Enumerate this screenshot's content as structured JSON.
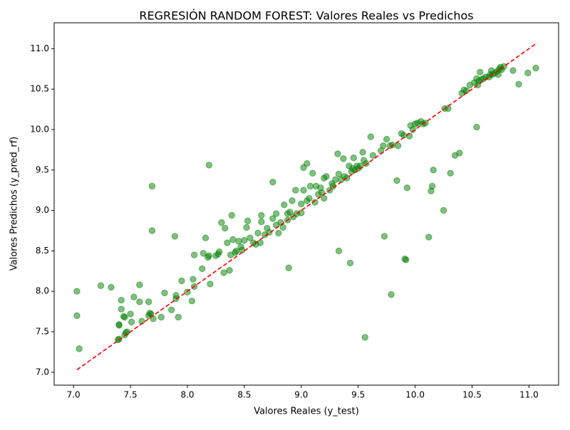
{
  "chart_data": {
    "type": "scatter",
    "title": "REGRESIÓN RANDOM FOREST: Valores Reales vs Predichos",
    "x_label": "Valores Reales (y_test)",
    "y_label": "Valores Predichos (y_pred_rf)",
    "color": "green",
    "alpha": 0.5,
    "xlim": [
      6.83,
      11.26
    ],
    "ylim": [
      6.84,
      11.32
    ],
    "xticks": [
      {
        "value": 7,
        "label": "7.0"
      },
      7.5,
      {
        "value": 8,
        "label": "8.0"
      },
      8.5,
      {
        "value": 9,
        "label": "9.0"
      },
      9.5,
      {
        "value": 10,
        "label": "10.0"
      },
      10.5,
      {
        "value": 11,
        "label": "11.0"
      }
    ],
    "yticks": [
      {
        "value": 7,
        "label": "7.0"
      },
      7.5,
      {
        "value": 8,
        "label": "8.0"
      },
      8.5,
      {
        "value": 9,
        "label": "9.0"
      },
      9.5,
      {
        "value": 10,
        "label": "10.0"
      },
      10.5,
      {
        "value": 11,
        "label": "11.0"
      }
    ],
    "reference_line": {
      "x": [
        7.03,
        11.07
      ],
      "y": [
        7.03,
        11.07
      ],
      "color": "red"
    },
    "x": [
      7.03,
      7.03,
      7.05,
      7.24,
      7.33,
      7.4,
      7.4,
      7.39,
      7.4,
      7.42,
      7.42,
      7.44,
      7.45,
      7.46,
      7.45,
      7.47,
      7.5,
      7.51,
      7.53,
      7.58,
      7.58,
      7.6,
      7.66,
      7.66,
      7.67,
      7.69,
      7.69,
      7.7,
      7.68,
      7.77,
      7.8,
      7.86,
      7.89,
      7.9,
      7.9,
      7.92,
      7.95,
      8.0,
      8.04,
      8.05,
      8.06,
      8.06,
      8.13,
      8.14,
      8.16,
      8.18,
      8.19,
      8.2,
      8.19,
      8.25,
      8.27,
      8.28,
      8.3,
      8.32,
      8.33,
      8.35,
      8.37,
      8.38,
      8.39,
      8.4,
      8.42,
      8.43,
      8.45,
      8.47,
      8.48,
      8.5,
      8.52,
      8.53,
      8.55,
      8.58,
      8.6,
      8.62,
      8.64,
      8.65,
      8.65,
      8.68,
      8.7,
      8.72,
      8.75,
      8.75,
      8.78,
      8.78,
      8.8,
      8.82,
      8.84,
      8.85,
      8.88,
      8.88,
      8.89,
      8.9,
      8.92,
      8.93,
      8.95,
      8.96,
      9.0,
      9.0,
      9.02,
      9.02,
      9.05,
      9.05,
      9.07,
      9.08,
      9.1,
      9.12,
      9.13,
      9.15,
      9.17,
      9.18,
      9.2,
      9.2,
      9.22,
      9.25,
      9.27,
      9.28,
      9.3,
      9.32,
      9.33,
      9.33,
      9.35,
      9.37,
      9.38,
      9.4,
      9.42,
      9.43,
      9.44,
      9.45,
      9.46,
      9.47,
      9.49,
      9.5,
      9.52,
      9.54,
      9.55,
      9.56,
      9.57,
      9.61,
      9.63,
      9.7,
      9.72,
      9.73,
      9.75,
      9.78,
      9.79,
      9.8,
      9.84,
      9.85,
      9.88,
      9.9,
      9.91,
      9.92,
      9.93,
      9.95,
      9.96,
      9.98,
      10.0,
      10.02,
      10.05,
      10.07,
      10.09,
      10.12,
      10.14,
      10.15,
      10.16,
      10.25,
      10.26,
      10.29,
      10.31,
      10.35,
      10.39,
      10.41,
      10.43,
      10.45,
      10.48,
      10.52,
      10.54,
      10.54,
      10.55,
      10.56,
      10.57,
      10.58,
      10.6,
      10.62,
      10.65,
      10.66,
      10.67,
      10.68,
      10.7,
      10.72,
      10.73,
      10.74,
      10.75,
      10.76,
      10.78,
      10.86,
      10.91,
      10.99,
      11.06
    ],
    "values": [
      8.0,
      7.7,
      7.29,
      8.07,
      8.05,
      7.59,
      7.58,
      7.4,
      7.41,
      7.89,
      7.78,
      7.69,
      7.68,
      7.49,
      7.46,
      7.5,
      7.72,
      7.62,
      7.93,
      8.08,
      7.87,
      7.63,
      7.87,
      7.7,
      7.73,
      9.3,
      8.75,
      7.66,
      7.72,
      7.68,
      7.98,
      7.77,
      8.68,
      7.95,
      7.91,
      7.68,
      8.13,
      7.99,
      7.88,
      8.15,
      8.45,
      8.06,
      8.28,
      8.47,
      8.66,
      8.42,
      8.44,
      8.09,
      9.56,
      8.44,
      8.46,
      8.49,
      8.85,
      8.23,
      8.78,
      8.6,
      8.26,
      8.45,
      8.94,
      8.64,
      8.48,
      8.5,
      8.62,
      8.55,
      8.51,
      8.63,
      8.79,
      8.87,
      8.66,
      8.6,
      8.58,
      8.72,
      8.6,
      8.86,
      8.94,
      8.7,
      8.78,
      8.73,
      9.35,
      8.9,
      8.82,
      8.96,
      8.72,
      8.85,
      8.79,
      9.07,
      8.96,
      8.88,
      8.29,
      8.98,
      9.12,
      8.92,
      9.25,
      8.96,
      8.97,
      9.08,
      9.25,
      9.53,
      9.58,
      9.12,
      9.15,
      9.3,
      9.46,
      9.1,
      9.3,
      9.2,
      9.28,
      9.22,
      9.4,
      9.15,
      9.42,
      9.25,
      9.33,
      9.3,
      9.38,
      9.7,
      8.5,
      9.45,
      9.38,
      9.64,
      9.42,
      9.4,
      9.55,
      8.35,
      9.48,
      9.52,
      9.65,
      9.5,
      9.55,
      9.52,
      9.55,
      9.72,
      9.62,
      7.43,
      9.58,
      9.91,
      9.68,
      9.74,
      9.8,
      8.68,
      9.88,
      9.8,
      7.96,
      9.81,
      9.37,
      9.8,
      9.95,
      9.93,
      8.4,
      8.39,
      9.28,
      9.92,
      10.05,
      10.0,
      10.07,
      10.08,
      10.1,
      10.07,
      10.08,
      8.67,
      9.24,
      9.3,
      9.5,
      9.0,
      10.26,
      10.26,
      9.46,
      9.68,
      9.71,
      10.45,
      10.49,
      10.48,
      10.55,
      10.58,
      10.63,
      10.03,
      10.55,
      10.6,
      10.71,
      10.62,
      10.63,
      10.65,
      10.65,
      10.68,
      10.73,
      10.68,
      10.7,
      10.72,
      10.68,
      10.75,
      10.77,
      10.74,
      10.78,
      10.73,
      10.56,
      10.7,
      10.76
    ]
  }
}
